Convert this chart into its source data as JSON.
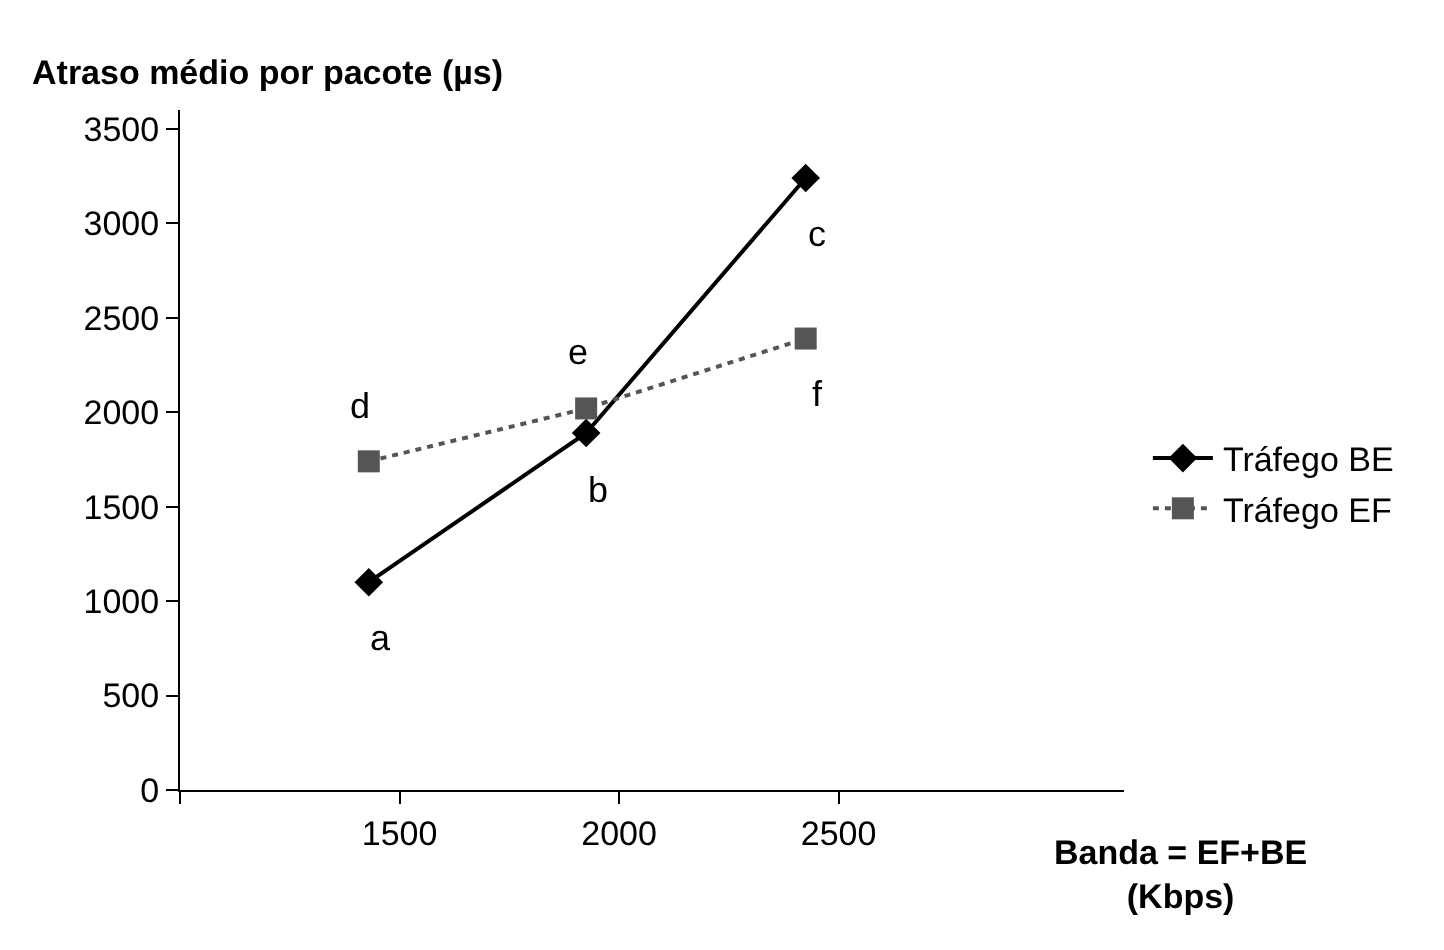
{
  "chart_data": {
    "type": "line",
    "ylabel": "Atraso médio por pacote (µs)",
    "xlabel": "Banda = EF+BE\n(Kbps)",
    "x": [
      1430,
      1925,
      2425
    ],
    "series": [
      {
        "name": "Tráfego BE",
        "color": "#000000",
        "values": [
          1100,
          1890,
          3240
        ],
        "marker": "diamond"
      },
      {
        "name": "Tráfego EF",
        "color": "#555555",
        "values": [
          1740,
          2020,
          2390
        ],
        "marker": "square",
        "line_style": "dotted"
      }
    ],
    "xlim": [
      1000,
      3150
    ],
    "xticks": [
      {
        "value": 1000,
        "label": null
      },
      1500,
      2000,
      2500
    ],
    "ylim": [
      0,
      3600
    ],
    "yticks": [
      0,
      500,
      1000,
      1500,
      2000,
      2500,
      3000,
      3500
    ],
    "legend": "right",
    "annotations": [
      {
        "text": "a",
        "x": 1430,
        "y": 1100
      },
      {
        "text": "b",
        "x": 1925,
        "y": 1890
      },
      {
        "text": "c",
        "x": 2425,
        "y": 3240
      },
      {
        "text": "d",
        "x": 1430,
        "y": 1740
      },
      {
        "text": "e",
        "x": 1925,
        "y": 2020
      },
      {
        "text": "f",
        "x": 2425,
        "y": 2390
      }
    ]
  }
}
